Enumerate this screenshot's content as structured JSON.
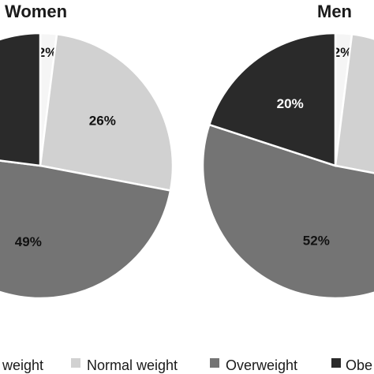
{
  "chart_data": [
    {
      "type": "pie",
      "title": "Women",
      "slices": [
        {
          "category": "Underweight",
          "value": 2,
          "label": "2%",
          "color": "#f5f5f5"
        },
        {
          "category": "Normal weight",
          "value": 26,
          "label": "26%",
          "color": "#d1d1d1"
        },
        {
          "category": "Overweight",
          "value": 49,
          "label": "49%",
          "color": "#747474"
        },
        {
          "category": "Obese",
          "value": 23,
          "label": "",
          "color": "#2a2a2a"
        }
      ]
    },
    {
      "type": "pie",
      "title": "Men",
      "slices": [
        {
          "category": "Underweight",
          "value": 2,
          "label": "2%",
          "color": "#f5f5f5"
        },
        {
          "category": "Normal weight",
          "value": 26,
          "label": "",
          "color": "#d1d1d1"
        },
        {
          "category": "Overweight",
          "value": 52,
          "label": "52%",
          "color": "#747474"
        },
        {
          "category": "Obese",
          "value": 20,
          "label": "20%",
          "color": "#2a2a2a"
        }
      ]
    }
  ],
  "legend": {
    "position": "bottom",
    "items": [
      {
        "label": "weight",
        "color": "#2a2a2a"
      },
      {
        "label": "Normal weight",
        "color": "#d1d1d1"
      },
      {
        "label": "Overweight",
        "color": "#747474"
      },
      {
        "label": "Obe",
        "color": "#2a2a2a"
      }
    ]
  }
}
